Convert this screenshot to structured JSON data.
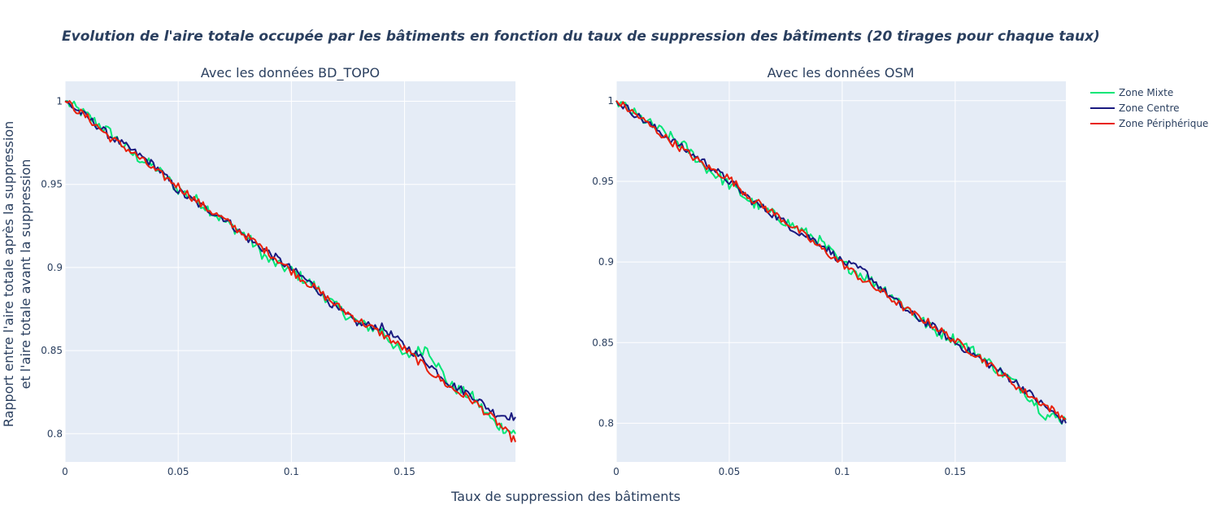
{
  "chart_data": {
    "type": "line",
    "title": "Evolution de l'aire totale occupée par les bâtiments en fonction du taux de suppression des bâtiments (20 tirages pour chaque taux)",
    "xlabel": "Taux de suppression des bâtiments",
    "ylabel_line1": "Rapport entre l'aire totale après la suppression",
    "ylabel_line2": "et l'aire totale avant la suppression",
    "legend_position": "top-right",
    "grid": true,
    "legend": [
      {
        "name": "Zone Mixte",
        "color": "#00e676"
      },
      {
        "name": "Zone Centre",
        "color": "#1a1a80"
      },
      {
        "name": "Zone Périphérique",
        "color": "#e8200c"
      }
    ],
    "panels": [
      {
        "subtitle": "Avec les données BD_TOPO",
        "xlim": [
          0,
          0.199
        ],
        "ylim": [
          0.783,
          1.012
        ],
        "xticks": [
          0,
          0.05,
          0.1,
          0.15
        ],
        "xtick_labels": [
          "0",
          "0.05",
          "0.1",
          "0.15"
        ],
        "yticks": [
          0.8,
          0.85,
          0.9,
          0.95,
          1
        ],
        "ytick_labels": [
          "0.8",
          "0.85",
          "0.9",
          "0.95",
          "1"
        ],
        "series": [
          {
            "name": "Zone Mixte",
            "x": [
              0,
              0.01,
              0.02,
              0.03,
              0.04,
              0.05,
              0.06,
              0.07,
              0.08,
              0.09,
              0.1,
              0.11,
              0.12,
              0.13,
              0.14,
              0.15,
              0.16,
              0.17,
              0.18,
              0.19,
              0.199
            ],
            "y": [
              1,
              0.991,
              0.981,
              0.968,
              0.96,
              0.947,
              0.939,
              0.928,
              0.919,
              0.904,
              0.898,
              0.889,
              0.876,
              0.866,
              0.862,
              0.846,
              0.852,
              0.829,
              0.822,
              0.806,
              0.8
            ]
          },
          {
            "name": "Zone Centre",
            "x": [
              0,
              0.01,
              0.02,
              0.03,
              0.04,
              0.05,
              0.06,
              0.07,
              0.08,
              0.09,
              0.1,
              0.11,
              0.12,
              0.13,
              0.14,
              0.15,
              0.16,
              0.17,
              0.18,
              0.19,
              0.199
            ],
            "y": [
              1,
              0.99,
              0.979,
              0.97,
              0.961,
              0.946,
              0.937,
              0.93,
              0.918,
              0.909,
              0.899,
              0.889,
              0.875,
              0.866,
              0.864,
              0.853,
              0.843,
              0.83,
              0.823,
              0.812,
              0.81
            ]
          },
          {
            "name": "Zone Périphérique",
            "x": [
              0,
              0.01,
              0.02,
              0.03,
              0.04,
              0.05,
              0.06,
              0.07,
              0.08,
              0.09,
              0.1,
              0.11,
              0.12,
              0.13,
              0.14,
              0.15,
              0.16,
              0.17,
              0.18,
              0.19,
              0.199
            ],
            "y": [
              1,
              0.99,
              0.978,
              0.969,
              0.958,
              0.949,
              0.938,
              0.929,
              0.919,
              0.909,
              0.898,
              0.888,
              0.877,
              0.868,
              0.86,
              0.851,
              0.839,
              0.828,
              0.82,
              0.808,
              0.795
            ]
          }
        ]
      },
      {
        "subtitle": "Avec les données OSM",
        "xlim": [
          0,
          0.199
        ],
        "ylim": [
          0.776,
          1.012
        ],
        "xticks": [
          0,
          0.05,
          0.1,
          0.15
        ],
        "xtick_labels": [
          "0",
          "0.05",
          "0.1",
          "0.15"
        ],
        "yticks": [
          0.8,
          0.85,
          0.9,
          0.95,
          1
        ],
        "ytick_labels": [
          "0.8",
          "0.85",
          "0.9",
          "0.95",
          "1"
        ],
        "series": [
          {
            "name": "Zone Mixte",
            "x": [
              0,
              0.01,
              0.02,
              0.03,
              0.04,
              0.05,
              0.06,
              0.07,
              0.08,
              0.09,
              0.1,
              0.11,
              0.12,
              0.13,
              0.14,
              0.15,
              0.16,
              0.17,
              0.18,
              0.19,
              0.199
            ],
            "y": [
              1,
              0.99,
              0.981,
              0.972,
              0.958,
              0.948,
              0.937,
              0.929,
              0.921,
              0.913,
              0.899,
              0.891,
              0.882,
              0.87,
              0.858,
              0.852,
              0.843,
              0.832,
              0.821,
              0.805,
              0.802
            ]
          },
          {
            "name": "Zone Centre",
            "x": [
              0,
              0.01,
              0.02,
              0.03,
              0.04,
              0.05,
              0.06,
              0.07,
              0.08,
              0.09,
              0.1,
              0.11,
              0.12,
              0.13,
              0.14,
              0.15,
              0.16,
              0.17,
              0.18,
              0.19,
              0.199
            ],
            "y": [
              1,
              0.99,
              0.98,
              0.97,
              0.961,
              0.95,
              0.938,
              0.929,
              0.919,
              0.912,
              0.9,
              0.894,
              0.88,
              0.868,
              0.86,
              0.85,
              0.841,
              0.832,
              0.822,
              0.81,
              0.8
            ]
          },
          {
            "name": "Zone Périphérique",
            "x": [
              0,
              0.01,
              0.02,
              0.03,
              0.04,
              0.05,
              0.06,
              0.07,
              0.08,
              0.09,
              0.1,
              0.11,
              0.12,
              0.13,
              0.14,
              0.15,
              0.16,
              0.17,
              0.18,
              0.19,
              0.199
            ],
            "y": [
              1,
              0.99,
              0.979,
              0.969,
              0.959,
              0.952,
              0.939,
              0.93,
              0.92,
              0.909,
              0.899,
              0.888,
              0.879,
              0.869,
              0.861,
              0.851,
              0.842,
              0.831,
              0.82,
              0.811,
              0.803
            ]
          }
        ]
      }
    ]
  }
}
